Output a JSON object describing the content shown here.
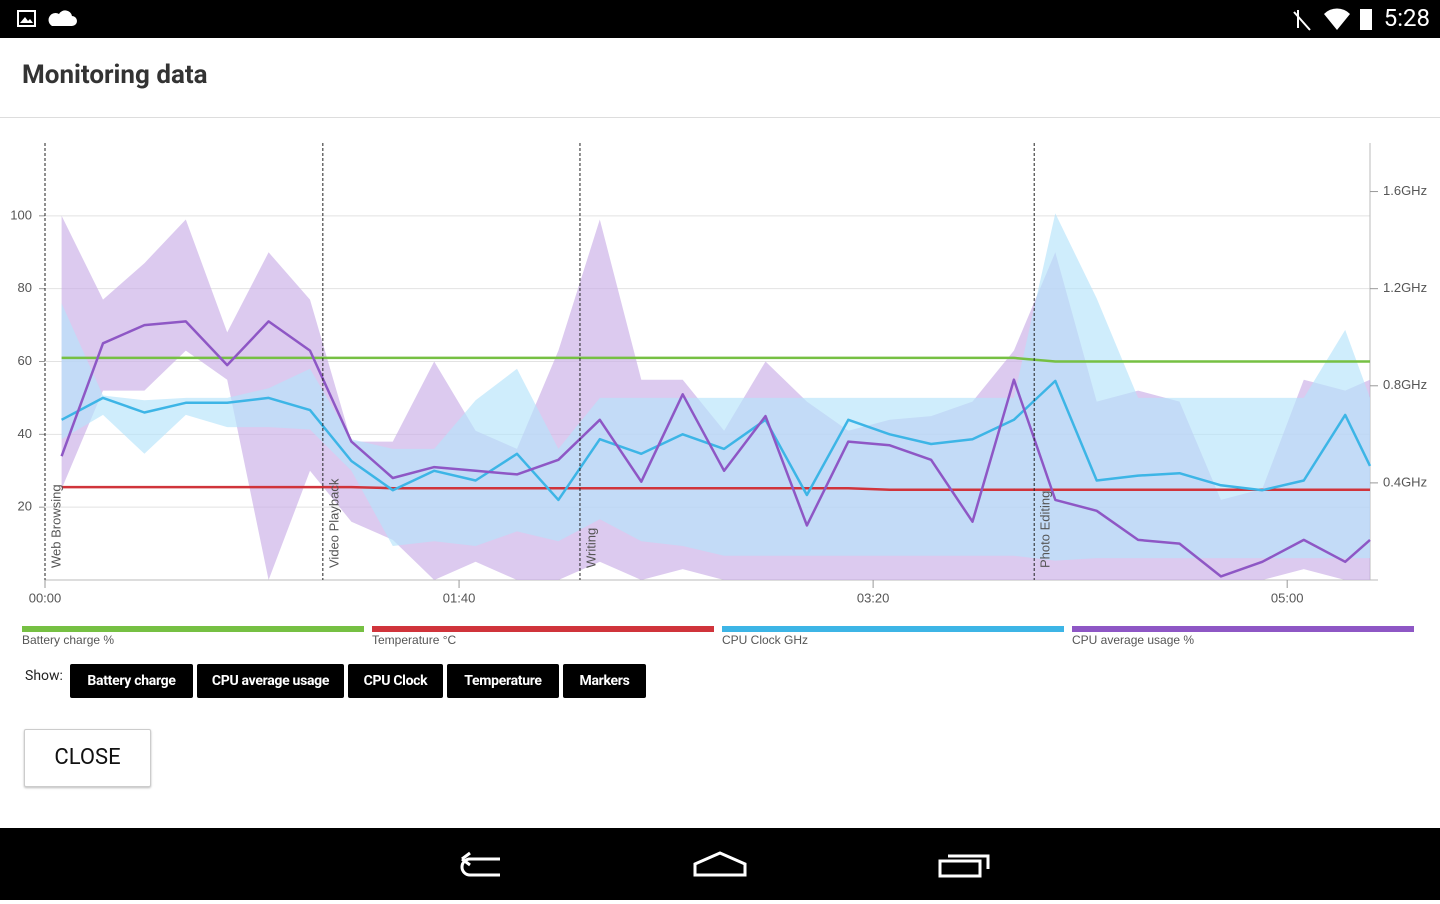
{
  "status_bar": {
    "time": "5:28"
  },
  "dialog": {
    "title": "Monitoring data"
  },
  "chart_data": {
    "type": "line",
    "x": [
      4,
      14,
      24,
      34,
      44,
      54,
      64,
      74,
      84,
      94,
      104,
      114,
      124,
      134,
      144,
      154,
      164,
      174,
      184,
      194,
      204,
      214,
      224,
      234,
      244,
      254,
      264,
      274,
      284,
      294,
      304,
      314,
      320
    ],
    "xlim": [
      0,
      320
    ],
    "xticks": [
      {
        "value": 0,
        "label": "00:00"
      },
      {
        "value": 100,
        "label": "01:40"
      },
      {
        "value": 200,
        "label": "03:20"
      },
      {
        "value": 300,
        "label": "05:00"
      }
    ],
    "ylim": [
      0,
      120
    ],
    "yticks": [
      20,
      40,
      60,
      80,
      100
    ],
    "y2lim": [
      0,
      1.8
    ],
    "y2ticks": [
      {
        "value": 0.4,
        "label": "0.4GHz"
      },
      {
        "value": 0.8,
        "label": "0.8GHz"
      },
      {
        "value": 1.2,
        "label": "1.2GHz"
      },
      {
        "value": 1.6,
        "label": "1.6GHz"
      }
    ],
    "grid": true,
    "markers": [
      {
        "x": 0,
        "label": "Web Browsing"
      },
      {
        "x": 67.1,
        "label": "Video Playback"
      },
      {
        "x": 129.2,
        "label": "Writing"
      },
      {
        "x": 238.9,
        "label": "Photo Editing"
      }
    ],
    "series": [
      {
        "name": "Battery charge %",
        "color": "#76c043",
        "values": [
          61,
          61,
          61,
          61,
          61,
          61,
          61,
          61,
          61,
          61,
          61,
          61,
          61,
          61,
          61,
          61,
          61,
          61,
          61,
          61,
          61,
          61,
          61,
          61,
          60,
          60,
          60,
          60,
          60,
          60,
          60,
          60,
          60
        ]
      },
      {
        "name": "Temperature °C",
        "color": "#d0343b",
        "values": [
          25.5,
          25.5,
          25.5,
          25.5,
          25.5,
          25.5,
          25.5,
          25.5,
          25.2,
          25.2,
          25.2,
          25.2,
          25.2,
          25.2,
          25.2,
          25.2,
          25.2,
          25.2,
          25.2,
          25.2,
          24.8,
          24.8,
          24.8,
          24.8,
          24.8,
          24.8,
          24.8,
          24.8,
          24.8,
          24.8,
          24.8,
          24.8,
          24.8
        ]
      },
      {
        "name": "CPU Clock GHz",
        "color": "#3db5e6",
        "axis": "y2",
        "band_color": "#b5e4fa",
        "values": [
          0.66,
          0.75,
          0.69,
          0.73,
          0.73,
          0.75,
          0.7,
          0.49,
          0.37,
          0.45,
          0.41,
          0.52,
          0.33,
          0.58,
          0.52,
          0.6,
          0.54,
          0.66,
          0.35,
          0.66,
          0.6,
          0.56,
          0.58,
          0.66,
          0.82,
          0.41,
          0.43,
          0.44,
          0.39,
          0.37,
          0.41,
          0.68,
          0.47
        ],
        "high": [
          1.14,
          0.76,
          0.74,
          0.75,
          0.75,
          0.79,
          0.87,
          0.58,
          0.54,
          0.54,
          0.74,
          0.87,
          0.54,
          0.75,
          0.75,
          0.75,
          0.75,
          0.75,
          0.75,
          0.75,
          0.75,
          0.75,
          0.75,
          0.75,
          1.51,
          1.16,
          0.75,
          0.75,
          0.75,
          0.75,
          0.75,
          1.03,
          0.75
        ],
        "low": [
          0.58,
          0.68,
          0.52,
          0.68,
          0.63,
          0.63,
          0.62,
          0.45,
          0.14,
          0.16,
          0.14,
          0.2,
          0.16,
          0.25,
          0.16,
          0.14,
          0.1,
          0.1,
          0.1,
          0.1,
          0.1,
          0.1,
          0.1,
          0.1,
          0.08,
          0.09,
          0.09,
          0.09,
          0.09,
          0.09,
          0.09,
          0.09,
          0.09
        ]
      },
      {
        "name": "CPU average usage %",
        "color": "#8e57c5",
        "band_color": "#c9aee6",
        "values": [
          34,
          65,
          70,
          71,
          59,
          71,
          63,
          38,
          28,
          31,
          30,
          29,
          33,
          44,
          27,
          51,
          30,
          45,
          15,
          38,
          37,
          33,
          16,
          55,
          22,
          19,
          11,
          10,
          1,
          5,
          11,
          5,
          11
        ],
        "high": [
          100,
          77,
          87,
          99,
          68,
          90,
          77,
          38,
          38,
          60,
          41,
          36,
          63,
          99,
          55,
          55,
          41,
          60,
          49,
          41,
          44,
          45,
          49,
          63,
          90,
          49,
          52,
          49,
          22,
          25,
          55,
          52,
          55
        ],
        "low": [
          25,
          52,
          52,
          63,
          55,
          0,
          30,
          16,
          11,
          0,
          5,
          0,
          0,
          5,
          0,
          3,
          0,
          0,
          0,
          0,
          0,
          0,
          0,
          0,
          0,
          0,
          0,
          0,
          0,
          0,
          3,
          0,
          0
        ]
      }
    ]
  },
  "controls": {
    "show_label": "Show:",
    "buttons": [
      "Battery charge",
      "CPU average usage",
      "CPU Clock",
      "Temperature",
      "Markers"
    ]
  },
  "close_button": "CLOSE"
}
